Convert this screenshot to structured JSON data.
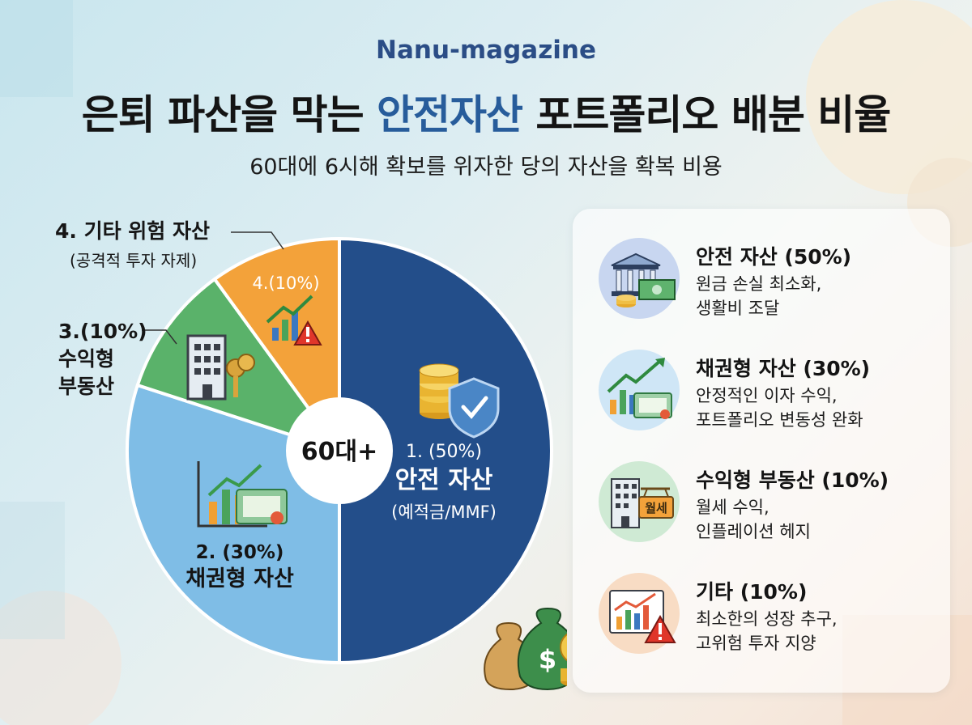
{
  "header": {
    "brand": "Nanu-magazine",
    "title_part1": "은퇴 파산을 막는 ",
    "title_highlight": "안전자산",
    "title_part2": " 포트폴리오 배분 비율",
    "subtitle": "60대에 6시해 확보를 위자한 당의 자산을 확복 비용"
  },
  "chart_data": {
    "type": "pie",
    "title": "",
    "center_label": "60대+",
    "slices": [
      {
        "label": "1. (50%)",
        "name": "안전 자산",
        "note": "(예적금/MMF)",
        "value": 50,
        "color": "#234e8a"
      },
      {
        "label": "2. (30%)",
        "name": "채권형 자산",
        "note": "",
        "value": 30,
        "color": "#7fbde6"
      },
      {
        "label": "3.(10%)",
        "name": "수익형 부동산",
        "note": "",
        "value": 10,
        "color": "#5ab26a"
      },
      {
        "label": "4.(10%)",
        "name": "기타 위험 자산",
        "note": "(공격적 투자 자제)",
        "value": 10,
        "color": "#f3a23a"
      }
    ],
    "outside_labels": {
      "slice3_line1": "3.(10%)",
      "slice3_line2": "수익형",
      "slice3_line3": "부동산",
      "slice4_line1": "4. 기타 위험 자산",
      "slice4_line2": "(공격적 투자 자제)"
    }
  },
  "panel": {
    "items": [
      {
        "title": "안전 자산 (50%)",
        "desc": "원금 손실 최소화,\n생활비 조달",
        "icon": "bank-cash-icon",
        "bg": "#c8d6f0"
      },
      {
        "title": "채권형 자산 (30%)",
        "desc": "안정적인 이자 수익,\n포트폴리오 변동성 완화",
        "icon": "bond-chart-icon",
        "bg": "#cfe6f6"
      },
      {
        "title": "수익형 부동산 (10%)",
        "desc": "월세 수익,\n인플레이션 헤지",
        "icon": "building-rent-icon",
        "bg": "#cfead4",
        "sign": "월세"
      },
      {
        "title": "기타 (10%)",
        "desc": "최소한의 성장 추구,\n고위험 투자 지양",
        "icon": "risk-chart-icon",
        "bg": "#f8dcc4"
      }
    ]
  }
}
